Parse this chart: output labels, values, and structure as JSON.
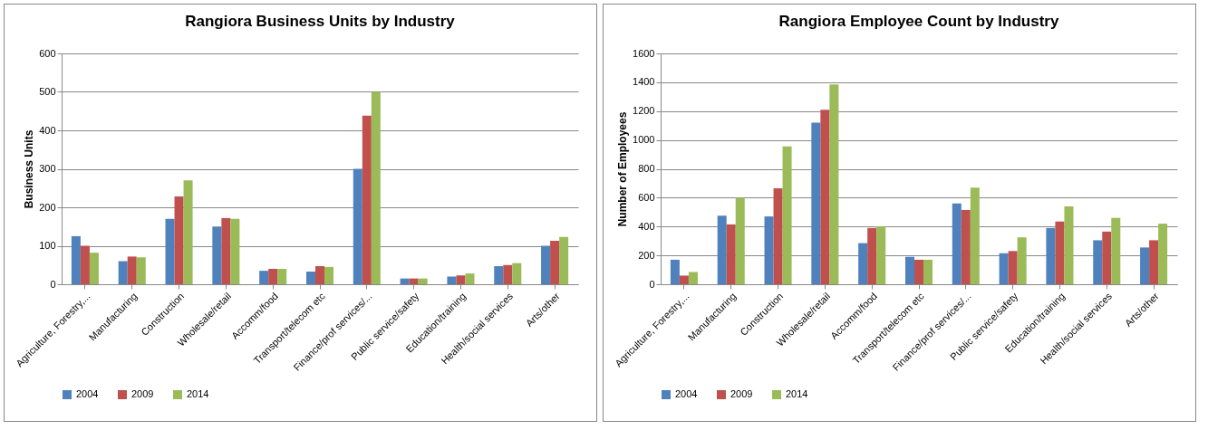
{
  "chart_data": [
    {
      "type": "bar",
      "title": "Rangiora Business Units by Industry",
      "ylabel": "Business Units",
      "categories": [
        "Agriculture, Forestry,...",
        "Manufacturing",
        "Construction",
        "Wholesale/retail",
        "Accomm/food",
        "Transport/telecom etc",
        "Finance/prof services/...",
        "Public service/safety",
        "Education/training",
        "Health/social services",
        "Arts/other"
      ],
      "series": [
        {
          "name": "2004",
          "color": "#4f81bd",
          "values": [
            125,
            60,
            170,
            150,
            35,
            33,
            300,
            15,
            20,
            47,
            100
          ]
        },
        {
          "name": "2009",
          "color": "#c0504d",
          "values": [
            100,
            72,
            228,
            172,
            40,
            47,
            438,
            15,
            23,
            50,
            113
          ]
        },
        {
          "name": "2014",
          "color": "#9bbb59",
          "values": [
            82,
            70,
            270,
            170,
            40,
            45,
            500,
            15,
            28,
            55,
            123
          ]
        }
      ],
      "ylim": [
        0,
        600
      ],
      "yticks": [
        0,
        100,
        200,
        300,
        400,
        500,
        600
      ],
      "grid": "y",
      "legend": "bottom"
    },
    {
      "type": "bar",
      "title": "Rangiora Employee Count by Industry",
      "ylabel": "Number of Employees",
      "categories": [
        "Agriculture, Forestry,...",
        "Manufacturing",
        "Construction",
        "Wholesale/retail",
        "Accomm/food",
        "Transport/telecom etc",
        "Finance/prof services/...",
        "Public service/safety",
        "Education/training",
        "Health/social services",
        "Arts/other"
      ],
      "series": [
        {
          "name": "2004",
          "color": "#4f81bd",
          "values": [
            170,
            475,
            470,
            1120,
            285,
            190,
            560,
            215,
            390,
            305,
            255
          ]
        },
        {
          "name": "2009",
          "color": "#c0504d",
          "values": [
            60,
            415,
            665,
            1210,
            390,
            170,
            515,
            230,
            435,
            365,
            305
          ]
        },
        {
          "name": "2014",
          "color": "#9bbb59",
          "values": [
            85,
            600,
            955,
            1385,
            400,
            170,
            670,
            325,
            540,
            460,
            420
          ]
        }
      ],
      "ylim": [
        0,
        1600
      ],
      "yticks": [
        0,
        200,
        400,
        600,
        800,
        1000,
        1200,
        1400,
        1600
      ],
      "grid": "y",
      "legend": "bottom"
    }
  ]
}
